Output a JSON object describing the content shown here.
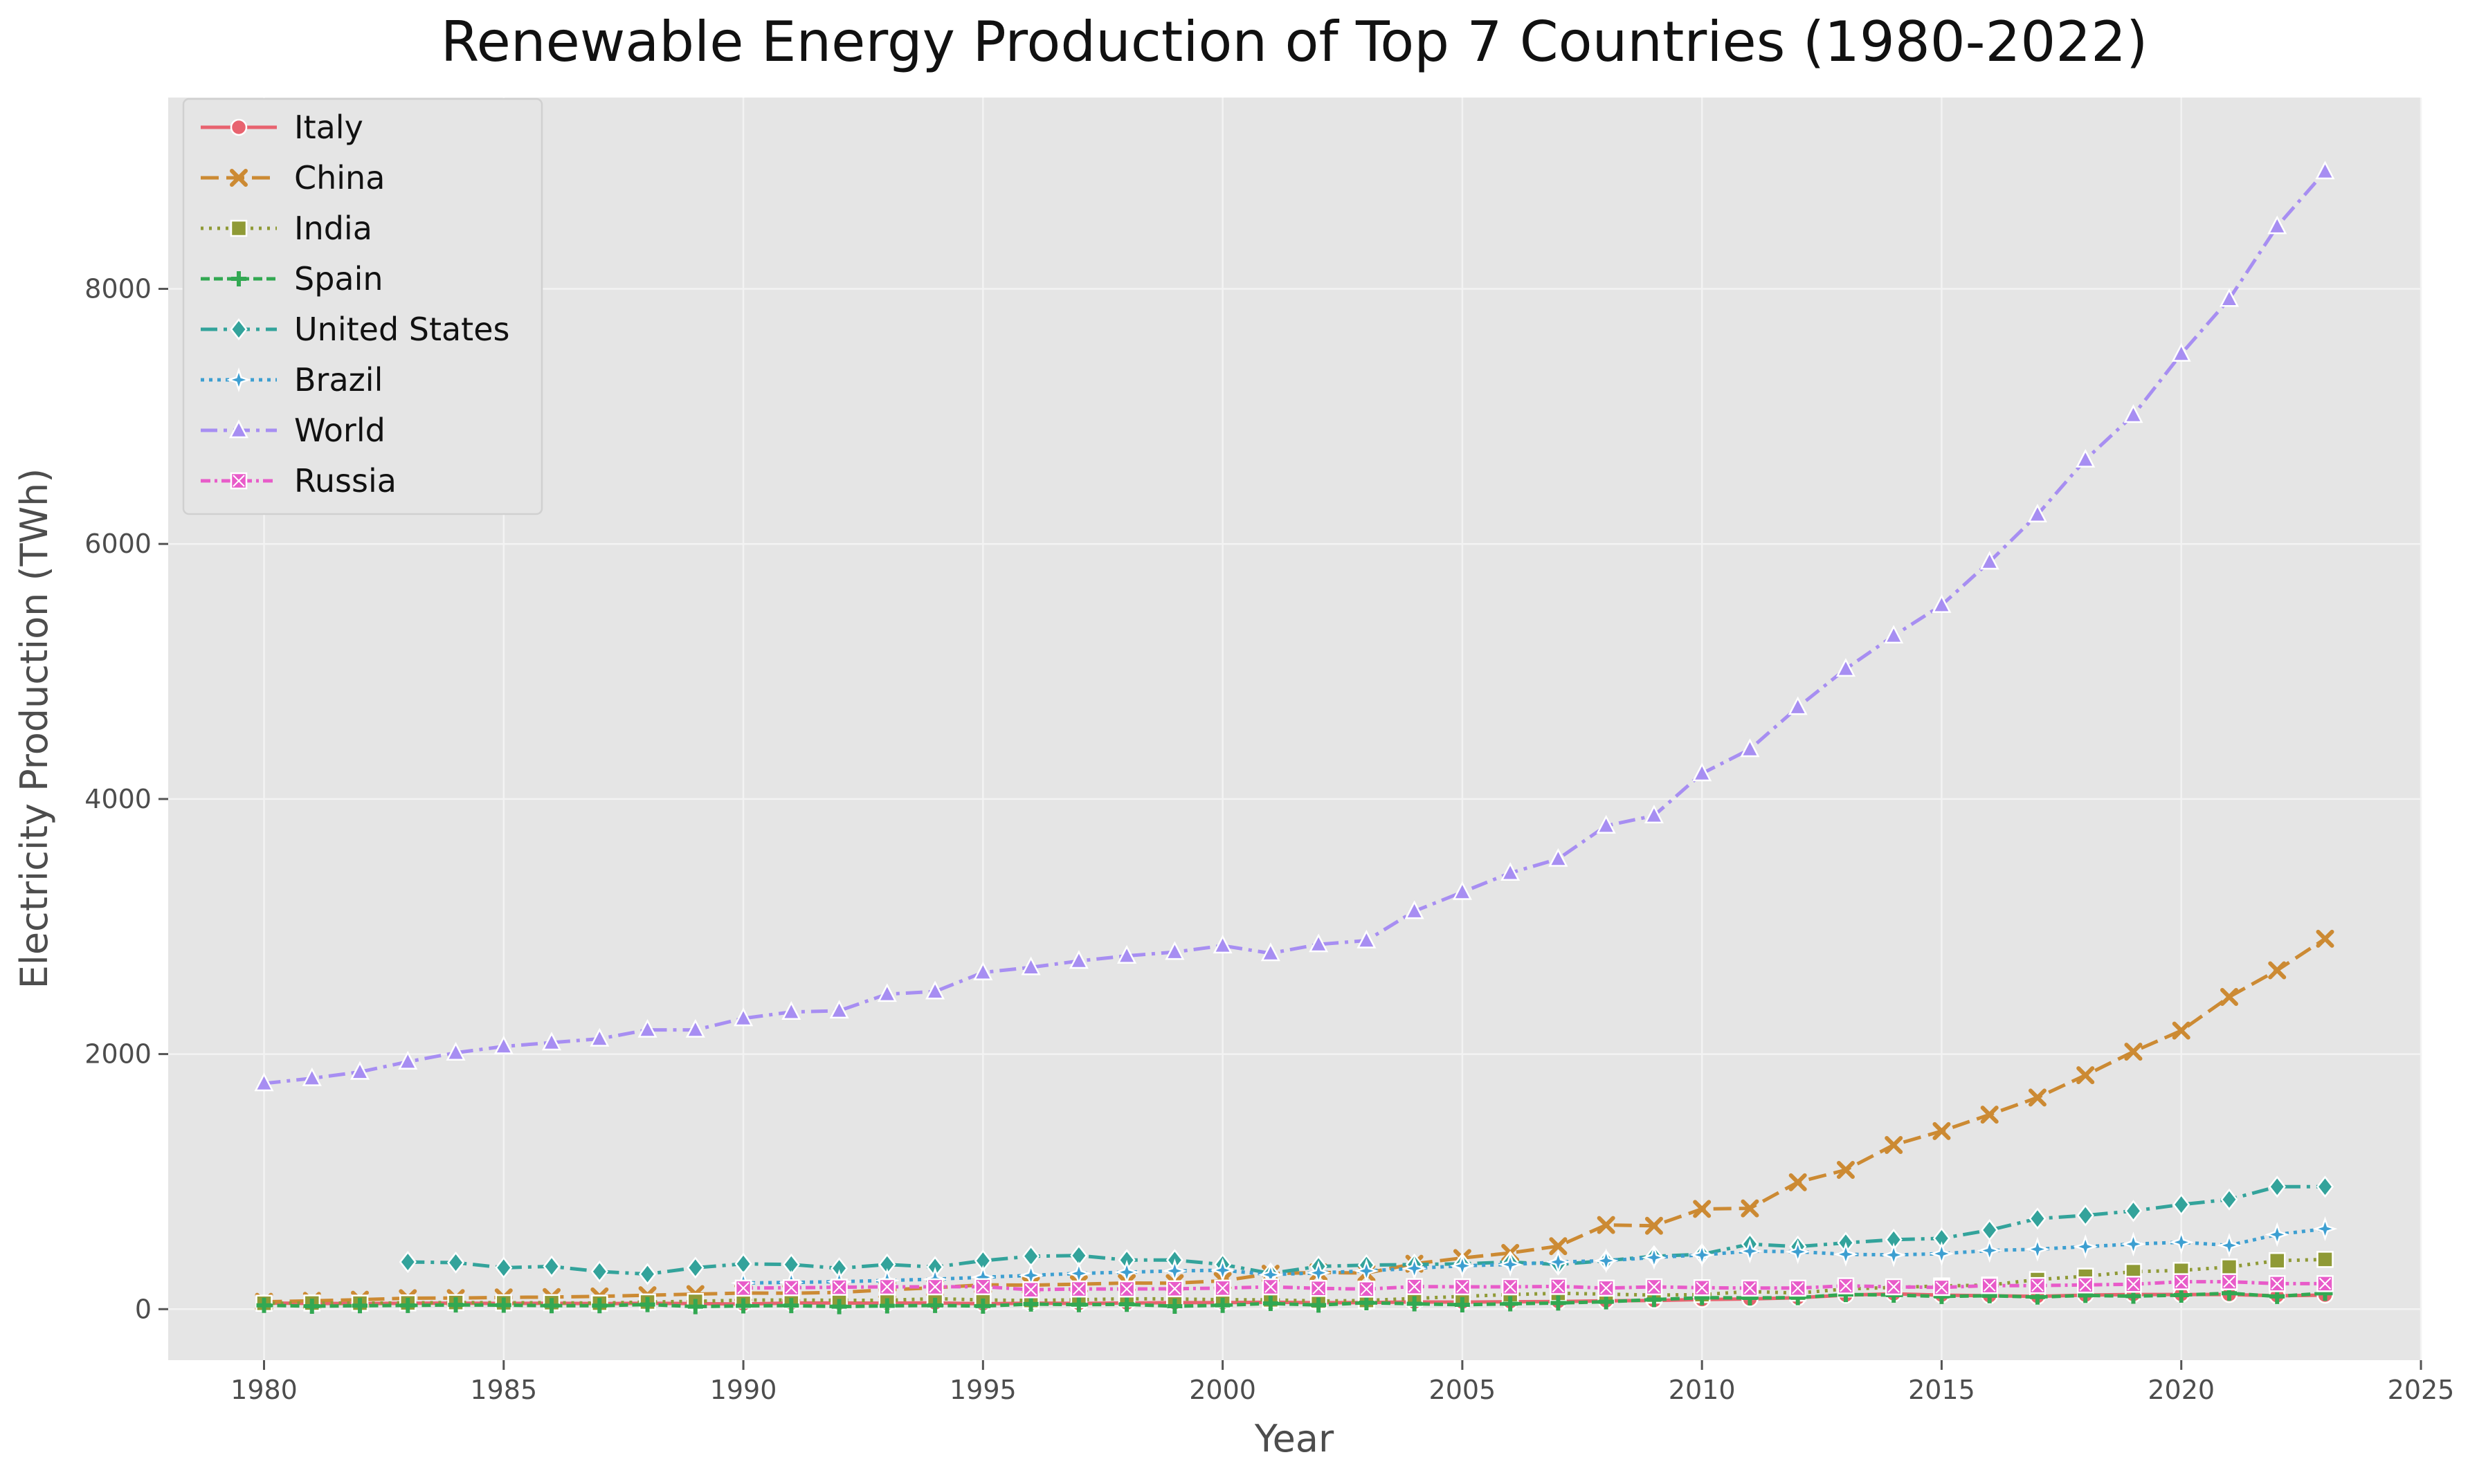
{
  "chart_data": {
    "type": "line",
    "title": "Renewable Energy Production of Top 7 Countries (1980-2022)",
    "xlabel": "Year",
    "ylabel": "Electricity Production (TWh)",
    "xlim": [
      1978,
      2025
    ],
    "ylim": [
      -400,
      9500
    ],
    "xticks": [
      1980,
      1985,
      1990,
      1995,
      2000,
      2005,
      2010,
      2015,
      2020,
      2025
    ],
    "yticks": [
      0,
      2000,
      4000,
      6000,
      8000
    ],
    "grid": true,
    "legend_position": "top-left",
    "background": "#e5e5e5",
    "series": [
      {
        "name": "Italy",
        "color": "#e8636f",
        "dash": "solid",
        "marker": "circle",
        "x": [
          1980,
          1981,
          1982,
          1983,
          1984,
          1985,
          1986,
          1987,
          1988,
          1989,
          1990,
          1991,
          1992,
          1993,
          1994,
          1995,
          1996,
          1997,
          1998,
          1999,
          2000,
          2001,
          2002,
          2003,
          2004,
          2005,
          2006,
          2007,
          2008,
          2009,
          2010,
          2011,
          2012,
          2013,
          2014,
          2015,
          2016,
          2017,
          2018,
          2019,
          2020,
          2021,
          2022,
          2023
        ],
        "y": [
          48,
          45,
          44,
          46,
          47,
          45,
          46,
          44,
          46,
          44,
          40,
          48,
          48,
          47,
          49,
          42,
          47,
          45,
          48,
          51,
          51,
          54,
          50,
          52,
          56,
          55,
          58,
          60,
          65,
          68,
          75,
          80,
          90,
          110,
          120,
          110,
          105,
          100,
          110,
          115,
          115,
          115,
          105,
          110
        ]
      },
      {
        "name": "China",
        "color": "#cc8a33",
        "dash": "dashed",
        "marker": "x",
        "x": [
          1980,
          1981,
          1982,
          1983,
          1984,
          1985,
          1986,
          1987,
          1988,
          1989,
          1990,
          1991,
          1992,
          1993,
          1994,
          1995,
          1996,
          1997,
          1998,
          1999,
          2000,
          2001,
          2002,
          2003,
          2004,
          2005,
          2006,
          2007,
          2008,
          2009,
          2010,
          2011,
          2012,
          2013,
          2014,
          2015,
          2016,
          2017,
          2018,
          2019,
          2020,
          2021,
          2022,
          2023
        ],
        "y": [
          58,
          65,
          74,
          86,
          87,
          92,
          95,
          100,
          109,
          118,
          126,
          125,
          131,
          151,
          168,
          191,
          188,
          196,
          205,
          204,
          222,
          278,
          288,
          283,
          356,
          401,
          441,
          494,
          660,
          654,
          786,
          790,
          995,
          1092,
          1287,
          1396,
          1525,
          1659,
          1834,
          2019,
          2184,
          2448,
          2657,
          2904
        ]
      },
      {
        "name": "India",
        "color": "#8f9a36",
        "dash": "dotted",
        "marker": "square",
        "x": [
          1980,
          1981,
          1982,
          1983,
          1984,
          1985,
          1986,
          1987,
          1988,
          1989,
          1990,
          1991,
          1992,
          1993,
          1994,
          1995,
          1996,
          1997,
          1998,
          1999,
          2000,
          2001,
          2002,
          2003,
          2004,
          2005,
          2006,
          2007,
          2008,
          2009,
          2010,
          2011,
          2012,
          2013,
          2014,
          2015,
          2016,
          2017,
          2018,
          2019,
          2020,
          2021,
          2022,
          2023
        ],
        "y": [
          46,
          48,
          47,
          49,
          52,
          50,
          51,
          47,
          56,
          61,
          71,
          72,
          69,
          69,
          82,
          72,
          68,
          74,
          81,
          80,
          74,
          73,
          64,
          68,
          84,
          100,
          114,
          124,
          118,
          110,
          114,
          138,
          126,
          158,
          170,
          182,
          189,
          232,
          258,
          294,
          304,
          330,
          380,
          390
        ]
      },
      {
        "name": "Spain",
        "color": "#32a852",
        "dash": "densely-dashed",
        "marker": "plus",
        "x": [
          1980,
          1981,
          1982,
          1983,
          1984,
          1985,
          1986,
          1987,
          1988,
          1989,
          1990,
          1991,
          1992,
          1993,
          1994,
          1995,
          1996,
          1997,
          1998,
          1999,
          2000,
          2001,
          2002,
          2003,
          2004,
          2005,
          2006,
          2007,
          2008,
          2009,
          2010,
          2011,
          2012,
          2013,
          2014,
          2015,
          2016,
          2017,
          2018,
          2019,
          2020,
          2021,
          2022,
          2023
        ],
        "y": [
          30,
          23,
          27,
          29,
          33,
          31,
          27,
          27,
          36,
          20,
          26,
          28,
          20,
          26,
          29,
          24,
          40,
          35,
          38,
          23,
          30,
          45,
          32,
          50,
          42,
          34,
          42,
          48,
          58,
          75,
          90,
          88,
          90,
          115,
          110,
          100,
          105,
          95,
          108,
          102,
          110,
          125,
          100,
          125
        ]
      },
      {
        "name": "United States",
        "color": "#33a39b",
        "dash": "dashdot",
        "marker": "diamond",
        "x": [
          1983,
          1984,
          1985,
          1986,
          1987,
          1988,
          1989,
          1990,
          1991,
          1992,
          1993,
          1994,
          1995,
          1996,
          1997,
          1998,
          1999,
          2000,
          2001,
          2002,
          2003,
          2004,
          2005,
          2006,
          2007,
          2008,
          2009,
          2010,
          2011,
          2012,
          2013,
          2014,
          2015,
          2016,
          2017,
          2018,
          2019,
          2020,
          2021,
          2022,
          2023
        ],
        "y": [
          370,
          365,
          325,
          335,
          295,
          275,
          325,
          355,
          350,
          320,
          350,
          330,
          380,
          415,
          420,
          385,
          385,
          350,
          280,
          335,
          345,
          350,
          355,
          370,
          350,
          380,
          415,
          430,
          510,
          490,
          520,
          545,
          555,
          620,
          710,
          735,
          770,
          820,
          860,
          960,
          960
        ]
      },
      {
        "name": "Brazil",
        "color": "#3d9fd1",
        "dash": "densely-dotted",
        "marker": "star",
        "x": [
          1990,
          1991,
          1992,
          1993,
          1994,
          1995,
          1996,
          1997,
          1998,
          1999,
          2000,
          2001,
          2002,
          2003,
          2004,
          2005,
          2006,
          2007,
          2008,
          2009,
          2010,
          2011,
          2012,
          2013,
          2014,
          2015,
          2016,
          2017,
          2018,
          2019,
          2020,
          2021,
          2022,
          2023
        ],
        "y": [
          205,
          210,
          215,
          225,
          235,
          250,
          265,
          280,
          290,
          300,
          305,
          270,
          285,
          300,
          320,
          340,
          350,
          370,
          380,
          405,
          425,
          455,
          450,
          430,
          425,
          435,
          460,
          470,
          490,
          510,
          525,
          500,
          585,
          630
        ]
      },
      {
        "name": "World",
        "color": "#a78ef2",
        "dash": "dashdot",
        "marker": "triangle",
        "x": [
          1980,
          1981,
          1982,
          1983,
          1984,
          1985,
          1986,
          1987,
          1988,
          1989,
          1990,
          1991,
          1992,
          1993,
          1994,
          1995,
          1996,
          1997,
          1998,
          1999,
          2000,
          2001,
          2002,
          2003,
          2004,
          2005,
          2006,
          2007,
          2008,
          2009,
          2010,
          2011,
          2012,
          2013,
          2014,
          2015,
          2016,
          2017,
          2018,
          2019,
          2020,
          2021,
          2022,
          2023
        ],
        "y": [
          1770,
          1810,
          1860,
          1940,
          2010,
          2060,
          2090,
          2120,
          2190,
          2190,
          2280,
          2330,
          2340,
          2470,
          2490,
          2640,
          2680,
          2730,
          2770,
          2800,
          2850,
          2790,
          2860,
          2890,
          3120,
          3270,
          3420,
          3530,
          3790,
          3870,
          4200,
          4390,
          4720,
          5020,
          5280,
          5520,
          5860,
          6230,
          6660,
          7010,
          7490,
          7920,
          8490,
          8920
        ]
      },
      {
        "name": "Russia",
        "color": "#e85bc9",
        "dash": "dashdot-dense",
        "marker": "xsquare",
        "x": [
          1990,
          1991,
          1992,
          1993,
          1994,
          1995,
          1996,
          1997,
          1998,
          1999,
          2000,
          2001,
          2002,
          2003,
          2004,
          2005,
          2006,
          2007,
          2008,
          2009,
          2010,
          2011,
          2012,
          2013,
          2014,
          2015,
          2016,
          2017,
          2018,
          2019,
          2020,
          2021,
          2022,
          2023
        ],
        "y": [
          165,
          168,
          172,
          175,
          175,
          176,
          152,
          158,
          158,
          160,
          165,
          175,
          163,
          157,
          177,
          175,
          175,
          178,
          165,
          175,
          168,
          165,
          165,
          183,
          175,
          170,
          185,
          185,
          190,
          195,
          215,
          215,
          200,
          200
        ]
      }
    ]
  }
}
